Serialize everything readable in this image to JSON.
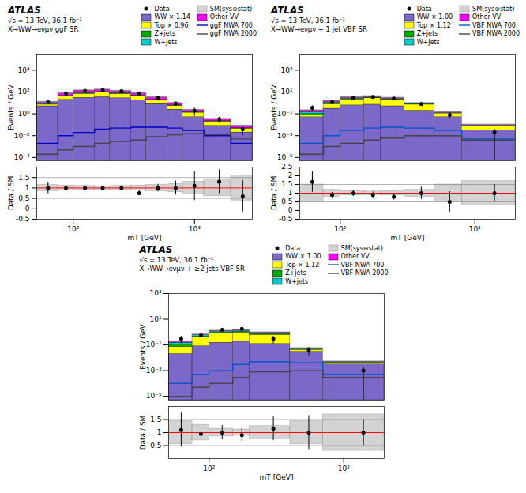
{
  "chart_data": [
    {
      "type": "bar",
      "stacked": true,
      "log": true,
      "tick_labels": "y",
      "legend": "upper right",
      "annotations": [
        "ATLAS",
        "√s = 13 TeV, 36.1 fb⁻¹",
        "X→WW→eνμν ggF SR"
      ],
      "ylabel": "Events / GeV",
      "bins": [
        50,
        75,
        100,
        150,
        200,
        300,
        400,
        600,
        800,
        1200,
        2000,
        3000
      ],
      "xlim": [
        50,
        3000
      ],
      "ylim": [
        5e-05,
        300000
      ],
      "yticks": [
        {
          "value": 0.0001,
          "label": "10⁻⁴"
        },
        {
          "value": 0.01,
          "label": "10⁻²"
        },
        {
          "value": 1,
          "label": "10⁰"
        },
        {
          "value": 100,
          "label": "10²"
        },
        {
          "value": 10000,
          "label": "10⁴"
        }
      ],
      "series": [
        {
          "name": "Data",
          "type": "scatter",
          "marker": "circle",
          "color": "black",
          "x": [
            62,
            87,
            125,
            175,
            250,
            350,
            500,
            700,
            1000,
            1600,
            2500
          ],
          "values": [
            12.0,
            75.0,
            130.0,
            155.0,
            120.0,
            75.0,
            30.0,
            9.0,
            2.0,
            0.32,
            0.04
          ],
          "errors": [
            3.5,
            8.5,
            11.5,
            12.5,
            11.0,
            8.5,
            5.5,
            3.0,
            1.4,
            0.18,
            0.03
          ]
        },
        {
          "name": "WW × 1.14",
          "type": "bar",
          "color": "#7b68c8",
          "values": [
            5.0,
            20.0,
            30.0,
            35.0,
            28.0,
            18.0,
            8.0,
            2.5,
            0.5,
            0.08,
            0.02
          ]
        },
        {
          "name": "Top × 0.96",
          "type": "bar",
          "color": "#ffff00",
          "values": [
            2.0,
            18.0,
            40.0,
            55.0,
            40.0,
            25.0,
            10.0,
            3.0,
            0.8,
            0.12,
            0.025
          ]
        },
        {
          "name": "Z+jets",
          "type": "bar",
          "color": "#00aa00",
          "values": [
            0.5,
            3.0,
            5.0,
            6.0,
            4.5,
            2.5,
            1.0,
            0.3,
            0.05,
            0.008,
            0.002
          ]
        },
        {
          "name": "W+jets",
          "type": "bar",
          "color": "#00cccc",
          "values": [
            1.0,
            4.0,
            7.0,
            8.0,
            6.0,
            3.5,
            1.5,
            0.4,
            0.07,
            0.012,
            0.003
          ]
        },
        {
          "name": "SM(sys⊕stat)",
          "type": "band",
          "color": "gray",
          "lower": [
            10.56,
            66,
            120.56,
            144.32,
            108.68,
            67.76,
            28.6,
            8.536,
            1.9536,
            0.2992,
            0.0704
          ],
          "upper": [
            13.44,
            84,
            153.44,
            183.68,
            138.32,
            86.24,
            36.4,
            10.864,
            2.4864,
            0.3808,
            0.0896
          ]
        },
        {
          "name": "Other VV",
          "type": "bar",
          "color": "#ff00ff",
          "values": [
            3.5,
            30.0,
            55.0,
            60.0,
            45.0,
            28.0,
            12.0,
            3.5,
            0.8,
            0.12,
            0.03
          ]
        },
        {
          "name": "ggF NWA 700",
          "type": "step",
          "color": "#0000cc",
          "values": [
            0.002,
            0.01,
            0.02,
            0.04,
            0.05,
            0.06,
            0.06,
            0.05,
            0.03,
            0.01,
            0.002
          ]
        },
        {
          "name": "ggF NWA 2000",
          "type": "step",
          "color": "#444444",
          "values": [
            0.0002,
            0.0005,
            0.001,
            0.002,
            0.003,
            0.004,
            0.008,
            0.012,
            0.015,
            0.012,
            0.005
          ]
        }
      ]
    },
    {
      "type": "scatter",
      "log": "x",
      "xlabel": "mT [GeV]",
      "ylabel": "Data / SM",
      "bins": [
        50,
        75,
        100,
        150,
        200,
        300,
        400,
        600,
        800,
        1200,
        2000,
        3000
      ],
      "xlim": [
        50,
        3000
      ],
      "ylim": [
        -0.5,
        2
      ],
      "xticks": [
        {
          "value": 100,
          "label": "10²"
        },
        {
          "value": 1000,
          "label": "10³"
        }
      ],
      "yticks": [
        -0.5,
        0,
        0.5,
        1,
        1.5
      ],
      "reference_lines": [
        {
          "value": 1.0,
          "color": "red"
        },
        {
          "value": 0.5,
          "color": "gray"
        },
        {
          "value": 1.5,
          "color": "gray"
        }
      ],
      "series": [
        {
          "name": "SM(sys⊕stat)",
          "type": "band",
          "color": "gray",
          "lower": [
            0.85,
            0.88,
            0.9,
            0.92,
            0.9,
            0.88,
            0.85,
            0.8,
            0.7,
            0.6,
            0.4
          ],
          "upper": [
            1.15,
            1.12,
            1.1,
            1.08,
            1.1,
            1.12,
            1.15,
            1.2,
            1.3,
            1.4,
            1.6
          ]
        },
        {
          "name": "Data",
          "type": "scatter",
          "marker": "circle",
          "color": "black",
          "x": [
            62,
            87,
            125,
            175,
            250,
            350,
            500,
            700,
            1000,
            1600,
            2500
          ],
          "values": [
            1.0,
            1.0,
            1.0,
            1.0,
            1.0,
            0.75,
            1.0,
            1.0,
            1.1,
            1.3,
            0.6
          ],
          "errors": [
            0.28,
            0.11,
            0.09,
            0.08,
            0.09,
            0.11,
            0.18,
            0.33,
            0.7,
            0.57,
            0.75
          ]
        }
      ]
    },
    {
      "type": "bar",
      "stacked": true,
      "log": true,
      "tick_labels": "y",
      "legend": "upper right",
      "annotations": [
        "ATLAS",
        "√s = 13 TeV, 36.1 fb⁻¹",
        "X→WW→eνμν + 1 jet VBF SR"
      ],
      "ylabel": "Events / GeV",
      "bins": [
        50,
        75,
        100,
        150,
        200,
        300,
        500,
        800,
        2000
      ],
      "xlim": [
        50,
        2000
      ],
      "ylim": [
        5e-06,
        30000
      ],
      "yticks": [
        {
          "value": 1e-05,
          "label": "10⁻⁵"
        },
        {
          "value": 0.001,
          "label": "10⁻³"
        },
        {
          "value": 0.1,
          "label": "10⁻¹"
        },
        {
          "value": 10,
          "label": "10¹"
        },
        {
          "value": 1000,
          "label": "10³"
        }
      ],
      "series": [
        {
          "name": "Data",
          "type": "scatter",
          "marker": "circle",
          "color": "black",
          "x": [
            62,
            87,
            125,
            175,
            250,
            400,
            650,
            1400
          ],
          "values": [
            0.35,
            1.2,
            3.0,
            3.5,
            2.5,
            0.8,
            0.08,
            0.002
          ],
          "errors": [
            0.2,
            0.35,
            0.55,
            0.6,
            0.5,
            0.28,
            0.04,
            0.002
          ]
        },
        {
          "name": "WW × 1.00",
          "type": "bar",
          "color": "#7b68c8",
          "values": [
            0.05,
            0.3,
            0.6,
            0.7,
            0.5,
            0.2,
            0.05,
            0.003
          ]
        },
        {
          "name": "Top × 1.12",
          "type": "bar",
          "color": "#ffff00",
          "values": [
            0.02,
            0.5,
            1.5,
            2.0,
            1.5,
            0.5,
            0.06,
            0.004
          ]
        },
        {
          "name": "Z+jets",
          "type": "bar",
          "color": "#00aa00",
          "values": [
            0.03,
            0.2,
            0.35,
            0.4,
            0.25,
            0.07,
            0.008,
            0.001
          ]
        },
        {
          "name": "W+jets",
          "type": "bar",
          "color": "#00cccc",
          "values": [
            0.04,
            0.15,
            0.25,
            0.3,
            0.2,
            0.06,
            0.007,
            0.0008
          ]
        },
        {
          "name": "SM(sys⊕stat)",
          "type": "band",
          "color": "gray",
          "lower": [
            0.1848,
            1.32,
            2.86,
            3.52,
            2.508,
            0.836,
            0.1232,
            0.008624
          ],
          "upper": [
            0.2352,
            1.68,
            3.64,
            4.48,
            3.192,
            1.064,
            0.1568,
            0.010976
          ]
        },
        {
          "name": "Other VV",
          "type": "bar",
          "color": "#ff00ff",
          "values": [
            0.07,
            0.35,
            0.55,
            0.6,
            0.4,
            0.12,
            0.015,
            0.001
          ]
        },
        {
          "name": "VBF NWA 700",
          "type": "step",
          "color": "#0055cc",
          "values": [
            0.0002,
            0.001,
            0.003,
            0.005,
            0.006,
            0.005,
            0.003,
            0.0005
          ]
        },
        {
          "name": "VBF NWA 2000",
          "type": "step",
          "color": "#444444",
          "values": [
            2e-05,
            0.0001,
            0.0002,
            0.0004,
            0.0006,
            0.001,
            0.001,
            0.0004
          ]
        }
      ]
    },
    {
      "type": "scatter",
      "log": "x",
      "xlabel": "mT [GeV]",
      "ylabel": "Data / SM",
      "bins": [
        50,
        75,
        100,
        150,
        200,
        300,
        500,
        800,
        2000
      ],
      "xlim": [
        50,
        2000
      ],
      "ylim": [
        -0.5,
        2.5
      ],
      "xticks": [
        {
          "value": 100,
          "label": "10²"
        },
        {
          "value": 1000,
          "label": "10³"
        }
      ],
      "yticks": [
        -0.5,
        0,
        0.5,
        1,
        1.5,
        2,
        2.5
      ],
      "reference_lines": [
        {
          "value": 1.0,
          "color": "red"
        },
        {
          "value": 0.5,
          "color": "gray"
        },
        {
          "value": 1.5,
          "color": "gray"
        }
      ],
      "series": [
        {
          "name": "SM(sys⊕stat)",
          "type": "band",
          "color": "gray",
          "lower": [
            0.5,
            0.8,
            0.88,
            0.9,
            0.88,
            0.8,
            0.5,
            0.3
          ],
          "upper": [
            1.5,
            1.2,
            1.12,
            1.1,
            1.12,
            1.2,
            1.5,
            1.7
          ]
        },
        {
          "name": "Data",
          "type": "scatter",
          "marker": "circle",
          "color": "black",
          "x": [
            62,
            87,
            125,
            175,
            250,
            400,
            650,
            1400
          ],
          "values": [
            1.65,
            0.9,
            1.0,
            0.9,
            0.8,
            1.0,
            0.5,
            1.0
          ],
          "errors": [
            0.6,
            0.15,
            0.18,
            0.17,
            0.19,
            0.35,
            0.6,
            0.5
          ]
        }
      ]
    },
    {
      "type": "bar",
      "stacked": true,
      "log": true,
      "tick_labels": "y",
      "legend": "upper right",
      "annotations": [
        "ATLAS",
        "√s = 13 TeV, 36.1 fb⁻¹",
        "X→WW→eνμν + ≥2 jets VBF SR"
      ],
      "ylabel": "Events / GeV",
      "bins": [
        50,
        75,
        100,
        150,
        200,
        400,
        700,
        2000
      ],
      "xlim": [
        50,
        2000
      ],
      "ylim": [
        5e-06,
        1000
      ],
      "yticks": [
        {
          "value": 1e-05,
          "label": "10⁻⁵"
        },
        {
          "value": 0.001,
          "label": "10⁻³"
        },
        {
          "value": 0.1,
          "label": "10⁻¹"
        },
        {
          "value": 10,
          "label": "10¹"
        },
        {
          "value": 1000,
          "label": "10³"
        }
      ],
      "series": [
        {
          "name": "Data",
          "type": "scatter",
          "marker": "circle",
          "color": "black",
          "x": [
            62,
            87,
            125,
            175,
            300,
            550,
            1400
          ],
          "values": [
            0.3,
            0.55,
            1.5,
            1.8,
            0.3,
            0.04,
            0.001
          ],
          "errors": [
            0.18,
            0.24,
            0.4,
            0.45,
            0.18,
            0.025,
            0.001
          ]
        },
        {
          "name": "WW × 1.00",
          "type": "bar",
          "color": "#7b68c8",
          "values": [
            0.02,
            0.08,
            0.15,
            0.18,
            0.12,
            0.03,
            0.003
          ]
        },
        {
          "name": "Top × 1.12",
          "type": "bar",
          "color": "#ffff00",
          "values": [
            0.05,
            0.3,
            0.65,
            0.75,
            0.5,
            0.012,
            0.001
          ]
        },
        {
          "name": "Z+jets",
          "type": "bar",
          "color": "#00aa00",
          "values": [
            0.04,
            0.08,
            0.12,
            0.14,
            0.08,
            0.004,
            0.0003
          ]
        },
        {
          "name": "W+jets",
          "type": "bar",
          "color": "#00cccc",
          "values": [
            0.04,
            0.12,
            0.2,
            0.22,
            0.14,
            0.006,
            0.0005
          ]
        },
        {
          "name": "SM(sys⊕stat)",
          "type": "band",
          "color": "gray",
          "lower": [
            0.1584,
            0.5632,
            1.0648,
            1.2232,
            0.792,
            0.0484,
            0.0044
          ],
          "upper": [
            0.2016,
            0.7168,
            1.3552,
            1.5568,
            1.008,
            0.0616,
            0.0056
          ]
        },
        {
          "name": "Other VV",
          "type": "bar",
          "color": "#ff00ff",
          "values": [
            0.03,
            0.06,
            0.09,
            0.1,
            0.06,
            0.003,
            0.0002
          ]
        },
        {
          "name": "VBF NWA 700",
          "type": "step",
          "color": "#0055cc",
          "values": [
            0.0001,
            0.0005,
            0.001,
            0.003,
            0.005,
            0.004,
            0.0005
          ]
        },
        {
          "name": "VBF NWA 2000",
          "type": "step",
          "color": "#444444",
          "values": [
            1e-05,
            5e-05,
            0.0001,
            0.0003,
            0.0008,
            0.001,
            0.0003
          ]
        }
      ]
    },
    {
      "type": "scatter",
      "log": "x",
      "xlabel": "mT [GeV]",
      "ylabel": "Data / SM",
      "bins": [
        50,
        75,
        100,
        150,
        200,
        400,
        700,
        2000
      ],
      "xlim": [
        50,
        2000
      ],
      "ylim": [
        0,
        2
      ],
      "xticks": [
        {
          "value": 100,
          "label": "10²"
        },
        {
          "value": 1000,
          "label": "10³"
        }
      ],
      "yticks": [
        0.5,
        1,
        1.5
      ],
      "reference_lines": [
        {
          "value": 1.0,
          "color": "red"
        },
        {
          "value": 0.5,
          "color": "gray"
        },
        {
          "value": 1.5,
          "color": "gray"
        }
      ],
      "series": [
        {
          "name": "SM(sys⊕stat)",
          "type": "band",
          "color": "gray",
          "lower": [
            0.55,
            0.7,
            0.85,
            0.88,
            0.75,
            0.55,
            0.3
          ],
          "upper": [
            1.45,
            1.3,
            1.15,
            1.12,
            1.25,
            1.45,
            1.7
          ]
        },
        {
          "name": "Data",
          "type": "scatter",
          "marker": "circle",
          "color": "black",
          "x": [
            62,
            87,
            125,
            175,
            300,
            550,
            1400
          ],
          "values": [
            1.1,
            0.95,
            1.0,
            0.9,
            1.15,
            1.0,
            1.0
          ],
          "errors": [
            0.65,
            0.22,
            0.27,
            0.25,
            0.45,
            0.65,
            0.5
          ]
        }
      ]
    }
  ]
}
